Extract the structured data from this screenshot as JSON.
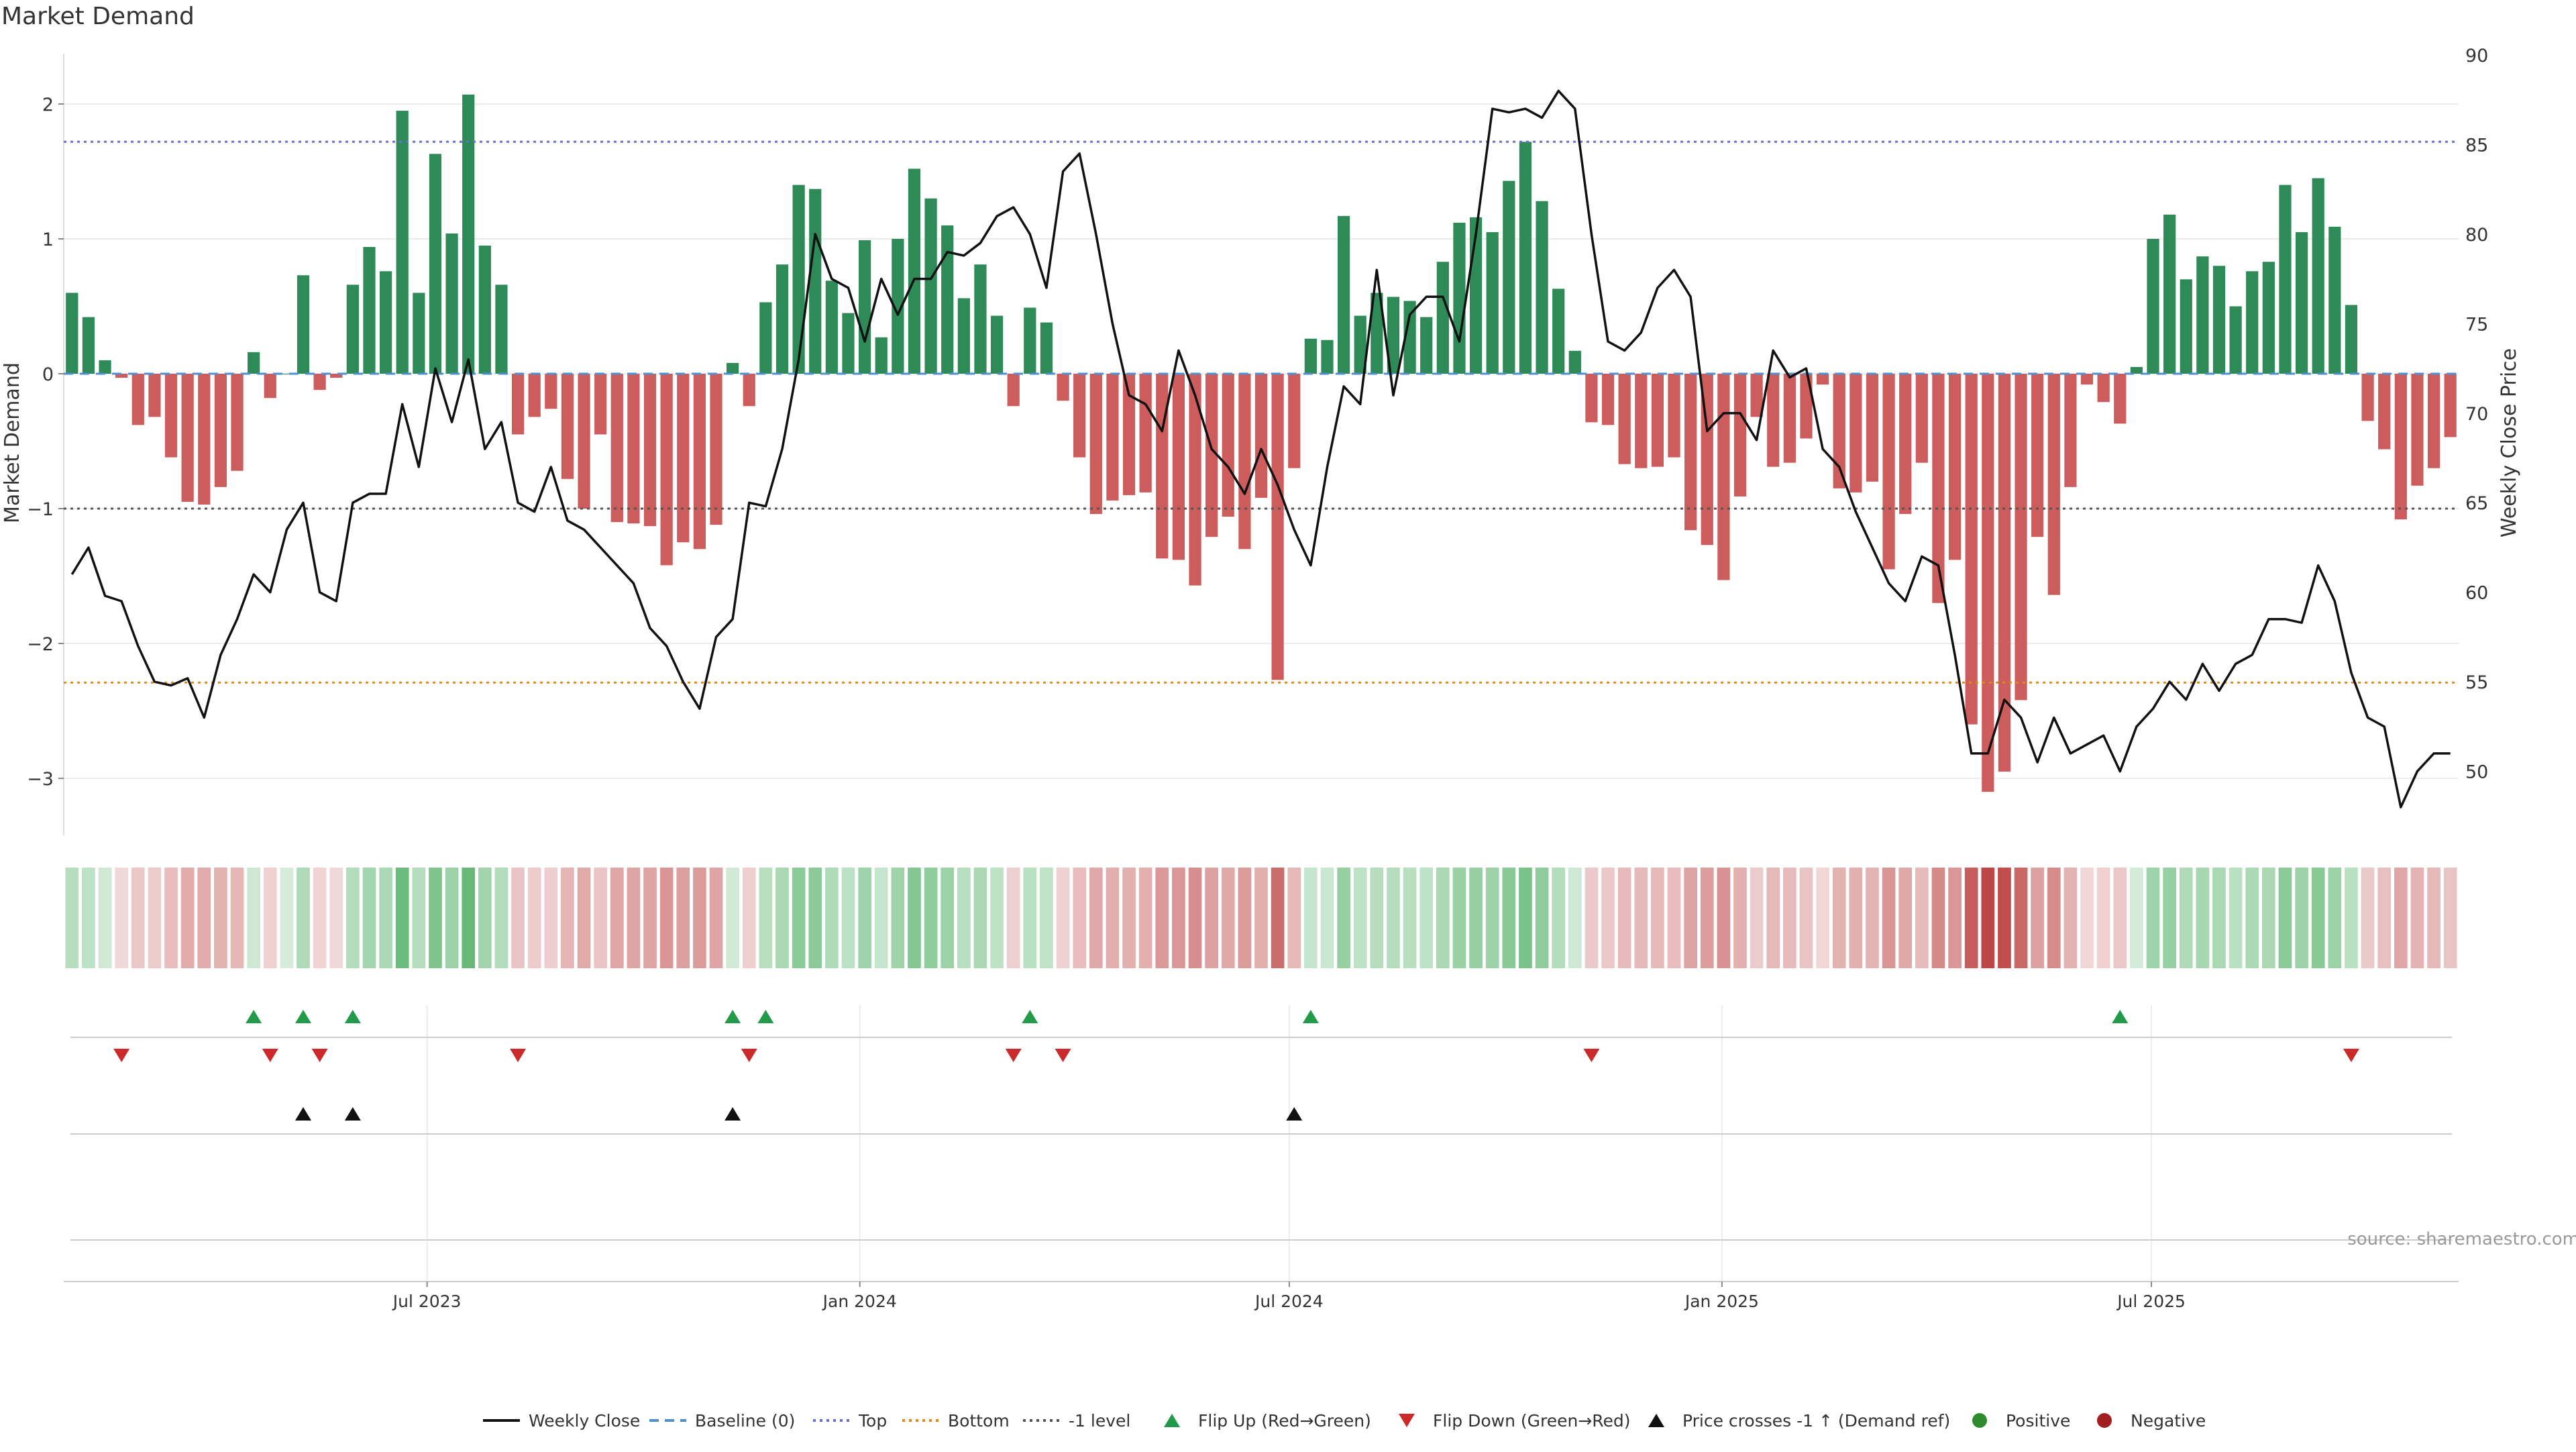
{
  "title": "Market Demand",
  "chart_data": {
    "type": "bar",
    "title": "Market Demand",
    "ylabel_left": "Market Demand",
    "ylabel_right": "Weekly Close Price",
    "y_left_range": [
      -3.45,
      2.35
    ],
    "y_right_range": [
      46.5,
      90
    ],
    "y_left_ticks": [
      {
        "v": 2,
        "label": "2"
      },
      {
        "v": 1,
        "label": "1"
      },
      {
        "v": 0,
        "label": "0"
      },
      {
        "v": -1,
        "label": "−1"
      },
      {
        "v": -2,
        "label": "−2"
      },
      {
        "v": -3,
        "label": "−3"
      }
    ],
    "y_right_ticks": [
      {
        "v": 90,
        "label": "90"
      },
      {
        "v": 85,
        "label": "85"
      },
      {
        "v": 80,
        "label": "80"
      },
      {
        "v": 75,
        "label": "75"
      },
      {
        "v": 70,
        "label": "70"
      },
      {
        "v": 65,
        "label": "65"
      },
      {
        "v": 60,
        "label": "60"
      },
      {
        "v": 55,
        "label": "55"
      },
      {
        "v": 50,
        "label": "50"
      }
    ],
    "reference_lines": {
      "top": 1.72,
      "bottom": -2.29,
      "minus_one": -1
    },
    "x_ticks": [
      {
        "i": 21.5,
        "label": "Jul 2023"
      },
      {
        "i": 47.7,
        "label": "Jan 2024"
      },
      {
        "i": 73.7,
        "label": "Jul 2024"
      },
      {
        "i": 99.9,
        "label": "Jan 2025"
      },
      {
        "i": 125.9,
        "label": "Jul 2025"
      }
    ],
    "demand": [
      0.6,
      0.42,
      0.1,
      -0.03,
      -0.38,
      -0.32,
      -0.62,
      -0.95,
      -0.97,
      -0.84,
      -0.72,
      0.16,
      -0.18,
      0.0,
      0.73,
      -0.12,
      -0.03,
      0.66,
      0.94,
      0.76,
      1.95,
      0.6,
      1.63,
      1.04,
      2.07,
      0.95,
      0.66,
      -0.45,
      -0.32,
      -0.26,
      -0.78,
      -1.0,
      -0.45,
      -1.1,
      -1.11,
      -1.13,
      -1.42,
      -1.25,
      -1.3,
      -1.12,
      0.08,
      -0.24,
      0.53,
      0.81,
      1.4,
      1.37,
      0.69,
      0.45,
      0.99,
      0.27,
      1.0,
      1.52,
      1.3,
      1.1,
      0.56,
      0.81,
      0.43,
      -0.24,
      0.49,
      0.38,
      -0.2,
      -0.62,
      -1.04,
      -0.94,
      -0.9,
      -0.88,
      -1.37,
      -1.38,
      -1.57,
      -1.21,
      -1.06,
      -1.3,
      -0.92,
      -2.27,
      -0.7,
      0.26,
      0.25,
      1.17,
      0.43,
      0.6,
      0.57,
      0.54,
      0.42,
      0.83,
      1.12,
      1.16,
      1.05,
      1.43,
      1.72,
      1.28,
      0.63,
      0.17,
      -0.36,
      -0.38,
      -0.67,
      -0.7,
      -0.69,
      -0.62,
      -1.16,
      -1.27,
      -1.53,
      -0.91,
      -0.32,
      -0.69,
      -0.66,
      -0.48,
      -0.08,
      -0.85,
      -0.88,
      -0.8,
      -1.45,
      -1.04,
      -0.66,
      -1.7,
      -1.38,
      -2.6,
      -3.1,
      -2.95,
      -2.42,
      -1.21,
      -1.64,
      -0.84,
      -0.08,
      -0.21,
      -0.37,
      0.05,
      1.0,
      1.18,
      0.7,
      0.87,
      0.8,
      0.5,
      0.76,
      0.83,
      1.4,
      1.05,
      1.45,
      1.09,
      0.51,
      -0.35,
      -0.56,
      -1.08,
      -0.83,
      -0.7,
      -0.47
    ],
    "close": [
      61,
      62.5,
      59.8,
      59.5,
      57,
      55,
      54.8,
      55.2,
      53,
      56.5,
      58.5,
      61,
      60,
      63.5,
      65,
      60,
      59.5,
      65,
      65.5,
      65.5,
      70.5,
      67,
      72.5,
      69.5,
      73,
      68,
      69.5,
      65,
      64.5,
      67,
      64,
      63.5,
      62.5,
      61.5,
      60.5,
      58,
      57,
      55,
      53.5,
      57.5,
      58.5,
      65,
      64.8,
      68,
      73,
      80,
      77.5,
      77,
      74,
      77.5,
      75.5,
      77.5,
      77.5,
      79,
      78.8,
      79.5,
      81,
      81.5,
      80,
      77,
      83.5,
      84.5,
      80,
      75,
      71,
      70.5,
      69,
      73.5,
      71,
      68,
      67,
      65.5,
      68,
      66,
      63.5,
      61.5,
      67,
      71.5,
      70.5,
      78,
      71,
      75.5,
      76.5,
      76.5,
      74,
      80,
      87,
      86.8,
      87,
      86.5,
      88,
      87,
      80,
      74,
      73.5,
      74.5,
      77,
      78,
      76.5,
      69,
      70,
      70,
      68.5,
      73.5,
      72,
      72.5,
      68,
      67,
      64.5,
      62.5,
      60.5,
      59.5,
      62,
      61.5,
      56.5,
      51,
      51,
      54,
      53,
      50.5,
      53,
      51,
      51.5,
      52,
      50,
      52.5,
      53.5,
      55,
      54,
      56,
      54.5,
      56,
      56.5,
      58.5,
      58.5,
      58.3,
      61.5,
      59.5,
      55.5,
      53,
      52.5,
      48,
      50,
      51,
      51
    ],
    "flip_up_idx": [
      11,
      14,
      17,
      40,
      42,
      58,
      75,
      124
    ],
    "flip_down_idx": [
      3,
      12,
      15,
      27,
      41,
      57,
      60,
      92,
      138
    ],
    "price_cross_idx": [
      14,
      17,
      40,
      74
    ],
    "source": "source: sharemaestro.com",
    "legend": [
      {
        "type": "line",
        "label": "Weekly Close",
        "color": "#111111"
      },
      {
        "type": "dash",
        "label": "Baseline (0)",
        "color": "#4f8fd0"
      },
      {
        "type": "dot",
        "label": "Top",
        "color": "#6a6fcf"
      },
      {
        "type": "dot",
        "label": "Bottom",
        "color": "#e08a1e"
      },
      {
        "type": "dot",
        "label": "-1 level",
        "color": "#555555"
      },
      {
        "type": "tri-up",
        "label": "Flip Up (Red→Green)",
        "color": "#229a4a"
      },
      {
        "type": "tri-down",
        "label": "Flip Down (Green→Red)",
        "color": "#cc2a2a"
      },
      {
        "type": "tri-up",
        "label": "Price crosses -1 ↑ (Demand ref)",
        "color": "#111111"
      },
      {
        "type": "dot-circle",
        "label": "Positive",
        "color": "#2e8b2e"
      },
      {
        "type": "dot-circle",
        "label": "Negative",
        "color": "#a31f1f"
      }
    ]
  }
}
